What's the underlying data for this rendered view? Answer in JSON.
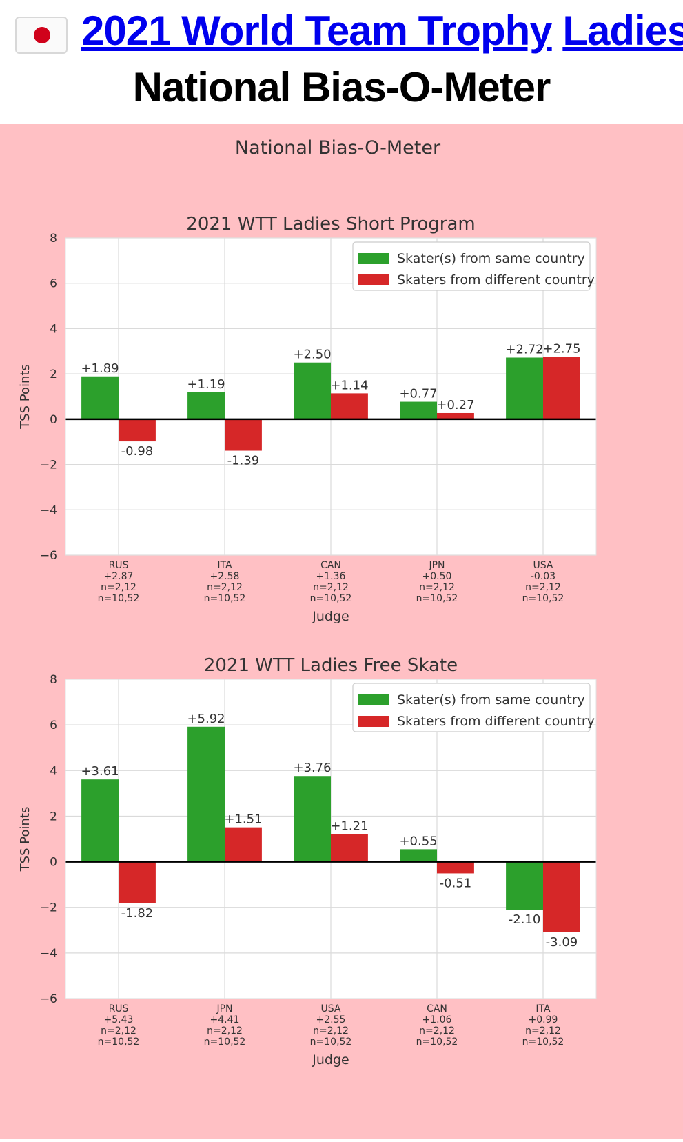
{
  "page": {
    "title_part1": "2021 World Team Trophy",
    "title_part2": "Ladies",
    "subtitle": "National Bias-O-Meter",
    "flag_icon": "japan-flag-icon",
    "colors": {
      "link": "#0000ee",
      "figure_bg": "#ffc0c4",
      "same": "#2ca02c",
      "different": "#d62728"
    }
  },
  "figure_title": "National Bias-O-Meter",
  "chart_data": [
    {
      "type": "bar",
      "title": "2021 WTT Ladies Short Program",
      "xlabel": "Judge",
      "ylabel": "TSS Points",
      "ylim": [
        -6,
        8
      ],
      "yticks": [
        "−6",
        "−4",
        "−2",
        "0",
        "2",
        "4",
        "6",
        "8"
      ],
      "grid": true,
      "legend_position": "top-right",
      "categories": [
        "RUS",
        "ITA",
        "CAN",
        "JPN",
        "USA"
      ],
      "category_sublabels": [
        [
          "+2.87",
          "n=2,12",
          "n=10,52"
        ],
        [
          "+2.58",
          "n=2,12",
          "n=10,52"
        ],
        [
          "+1.36",
          "n=2,12",
          "n=10,52"
        ],
        [
          "+0.50",
          "n=2,12",
          "n=10,52"
        ],
        [
          "-0.03",
          "n=2,12",
          "n=10,52"
        ]
      ],
      "series": [
        {
          "name": "Skater(s) from same country",
          "color": "#2ca02c",
          "values": [
            1.89,
            1.19,
            2.5,
            0.77,
            2.72
          ],
          "labels": [
            "+1.89",
            "+1.19",
            "+2.50",
            "+0.77",
            "+2.72"
          ]
        },
        {
          "name": "Skaters from different country",
          "color": "#d62728",
          "values": [
            -0.98,
            -1.39,
            1.14,
            0.27,
            2.75
          ],
          "labels": [
            "-0.98",
            "-1.39",
            "+1.14",
            "+0.27",
            "+2.75"
          ]
        }
      ]
    },
    {
      "type": "bar",
      "title": "2021 WTT Ladies Free Skate",
      "xlabel": "Judge",
      "ylabel": "TSS Points",
      "ylim": [
        -6,
        8
      ],
      "yticks": [
        "−6",
        "−4",
        "−2",
        "0",
        "2",
        "4",
        "6",
        "8"
      ],
      "grid": true,
      "legend_position": "top-right",
      "categories": [
        "RUS",
        "JPN",
        "USA",
        "CAN",
        "ITA"
      ],
      "category_sublabels": [
        [
          "+5.43",
          "n=2,12",
          "n=10,52"
        ],
        [
          "+4.41",
          "n=2,12",
          "n=10,52"
        ],
        [
          "+2.55",
          "n=2,12",
          "n=10,52"
        ],
        [
          "+1.06",
          "n=2,12",
          "n=10,52"
        ],
        [
          "+0.99",
          "n=2,12",
          "n=10,52"
        ]
      ],
      "series": [
        {
          "name": "Skater(s) from same country",
          "color": "#2ca02c",
          "values": [
            3.61,
            5.92,
            3.76,
            0.55,
            -2.1
          ],
          "labels": [
            "+3.61",
            "+5.92",
            "+3.76",
            "+0.55",
            "-2.10"
          ]
        },
        {
          "name": "Skaters from different country",
          "color": "#d62728",
          "values": [
            -1.82,
            1.51,
            1.21,
            -0.51,
            -3.09
          ],
          "labels": [
            "-1.82",
            "+1.51",
            "+1.21",
            "-0.51",
            "-3.09"
          ]
        }
      ]
    }
  ]
}
